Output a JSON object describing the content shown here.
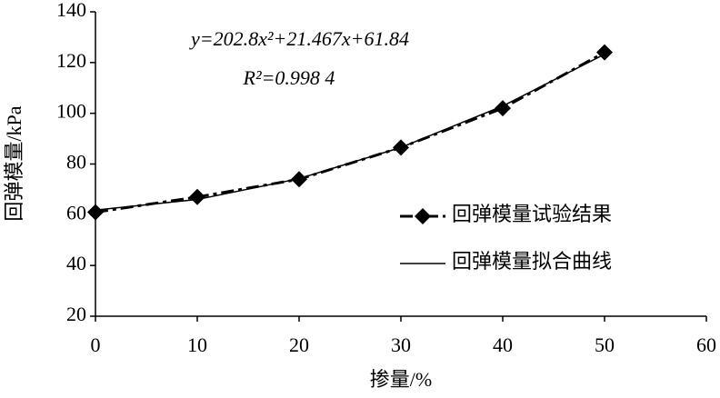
{
  "chart_data": {
    "type": "line",
    "x": [
      0,
      10,
      20,
      30,
      40,
      50
    ],
    "series": [
      {
        "name": "回弹模量试验结果",
        "color": "#000000",
        "values": [
          61,
          67,
          74,
          86.5,
          102,
          124
        ]
      },
      {
        "name": "回弹模量拟合曲线",
        "color": "#000000",
        "values": [
          61.84,
          66.01,
          74.25,
          86.53,
          102.87,
          123.27
        ]
      }
    ],
    "xlabel": "掺量/%",
    "ylabel": "回弹模量/kPa",
    "annotations": [
      "y=202.8x²+21.467x+61.84",
      "R²=0.998 4"
    ],
    "xlim": [
      0,
      60
    ],
    "xticks": [
      0,
      10,
      20,
      30,
      40,
      50,
      60
    ],
    "ylim": [
      20,
      140
    ],
    "yticks": [
      20,
      40,
      60,
      80,
      100,
      120,
      140
    ],
    "grid": false,
    "legend": "right"
  }
}
